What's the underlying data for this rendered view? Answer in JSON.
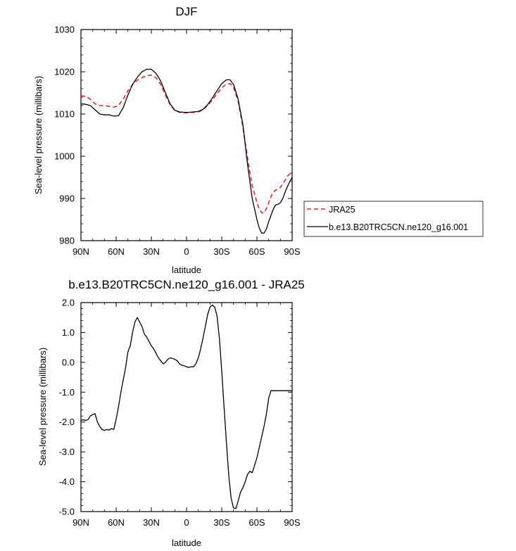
{
  "chart_data": [
    {
      "type": "line",
      "title": "DJF",
      "xlabel": "latitude",
      "ylabel": "Sea-level pressure (millibars)",
      "xlim": [
        90,
        -90
      ],
      "ylim": [
        980,
        1030
      ],
      "xticks": [
        {
          "value": 90,
          "label": "90N"
        },
        {
          "value": 60,
          "label": "60N"
        },
        {
          "value": 30,
          "label": "30N"
        },
        {
          "value": 0,
          "label": "0"
        },
        {
          "value": -30,
          "label": "30S"
        },
        {
          "value": -60,
          "label": "60S"
        },
        {
          "value": -90,
          "label": "90S"
        }
      ],
      "yticks": [
        {
          "value": 980,
          "label": "980"
        },
        {
          "value": 990,
          "label": "990"
        },
        {
          "value": 1000,
          "label": "1000"
        },
        {
          "value": 1010,
          "label": "1010"
        },
        {
          "value": 1020,
          "label": "1020"
        },
        {
          "value": 1030,
          "label": "1030"
        }
      ],
      "grid": false,
      "legend": "right",
      "series": [
        {
          "name": "JRA25",
          "color": "#e8202a",
          "dash": true,
          "x": [
            90,
            86,
            82,
            78,
            74,
            70,
            66,
            62,
            58,
            54,
            50,
            46,
            42,
            38,
            34,
            30,
            26,
            22,
            18,
            14,
            10,
            6,
            2,
            -2,
            -6,
            -10,
            -14,
            -18,
            -22,
            -26,
            -30,
            -34,
            -37,
            -40,
            -44,
            -48,
            -52,
            -56,
            -60,
            -62,
            -64,
            -66,
            -68,
            -70,
            -72,
            -74,
            -76,
            -78,
            -80,
            -82,
            -84,
            -86,
            -88,
            -90
          ],
          "y": [
            1014.3,
            1014.2,
            1013.5,
            1012.4,
            1012.0,
            1012.0,
            1011.8,
            1011.6,
            1012.0,
            1013.5,
            1015.5,
            1017.0,
            1018.0,
            1018.6,
            1019.1,
            1019.2,
            1018.6,
            1017.0,
            1014.5,
            1012.2,
            1010.8,
            1010.4,
            1010.3,
            1010.3,
            1010.4,
            1010.5,
            1011.0,
            1012.0,
            1013.3,
            1014.8,
            1016.2,
            1017.1,
            1017.2,
            1016.4,
            1013.0,
            1007.0,
            999.5,
            993.0,
            989.0,
            987.5,
            986.6,
            986.6,
            987.5,
            989.0,
            990.5,
            991.5,
            992.0,
            992.2,
            992.6,
            993.5,
            994.3,
            995.3,
            995.8,
            996.2
          ]
        },
        {
          "name": "b.e13.B20TRC5CN.ne120_g16.001",
          "color": "#000000",
          "dash": false,
          "x": [
            90,
            86,
            82,
            78,
            74,
            70,
            66,
            62,
            58,
            54,
            50,
            46,
            42,
            38,
            34,
            30,
            26,
            22,
            18,
            14,
            10,
            6,
            2,
            -2,
            -6,
            -10,
            -14,
            -18,
            -22,
            -26,
            -30,
            -34,
            -37,
            -40,
            -44,
            -48,
            -52,
            -56,
            -60,
            -62,
            -64,
            -66,
            -68,
            -70,
            -72,
            -74,
            -76,
            -78,
            -80,
            -82,
            -84,
            -86,
            -88,
            -90
          ],
          "y": [
            1012.4,
            1012.3,
            1012.0,
            1011.0,
            1010.0,
            1009.8,
            1009.8,
            1009.5,
            1009.6,
            1011.5,
            1014.5,
            1017.0,
            1018.7,
            1020.0,
            1020.6,
            1020.6,
            1019.6,
            1017.8,
            1015.0,
            1012.4,
            1010.9,
            1010.5,
            1010.4,
            1010.4,
            1010.5,
            1010.6,
            1011.1,
            1012.2,
            1013.8,
            1015.5,
            1017.2,
            1018.1,
            1018.1,
            1017.0,
            1013.5,
            1007.5,
            998.0,
            990.0,
            985.0,
            983.0,
            981.8,
            981.8,
            982.7,
            984.5,
            986.0,
            987.5,
            988.5,
            988.6,
            989.0,
            990.0,
            991.5,
            992.8,
            994.0,
            995.0
          ]
        }
      ]
    },
    {
      "type": "line",
      "title": "b.e13.B20TRC5CN.ne120_g16.001 - JRA25",
      "xlabel": "latitude",
      "ylabel": "Sea-level pressure (millibars)",
      "xlim": [
        90,
        -90
      ],
      "ylim": [
        -5.0,
        2.0
      ],
      "xticks": [
        {
          "value": 90,
          "label": "90N"
        },
        {
          "value": 60,
          "label": "60N"
        },
        {
          "value": 30,
          "label": "30N"
        },
        {
          "value": 0,
          "label": "0"
        },
        {
          "value": -30,
          "label": "30S"
        },
        {
          "value": -60,
          "label": "60S"
        },
        {
          "value": -90,
          "label": "90S"
        }
      ],
      "yticks": [
        {
          "value": 2.0,
          "label": "2.0"
        },
        {
          "value": 1.0,
          "label": "1.0"
        },
        {
          "value": 0.0,
          "label": "0.0"
        },
        {
          "value": -1.0,
          "label": "-1.0"
        },
        {
          "value": -2.0,
          "label": "-2.0"
        },
        {
          "value": -3.0,
          "label": "-3.0"
        },
        {
          "value": -4.0,
          "label": "-4.0"
        },
        {
          "value": -5.0,
          "label": "-5.0"
        }
      ],
      "grid": false,
      "series": [
        {
          "color": "#000000",
          "dash": false,
          "x": [
            90,
            88,
            86,
            84,
            82,
            80,
            78,
            76,
            74,
            72,
            70,
            68,
            66,
            64,
            62,
            60,
            58,
            56,
            54,
            52,
            50,
            48,
            46,
            44,
            42,
            40,
            38,
            36,
            34,
            32,
            30,
            28,
            26,
            24,
            22,
            20,
            18,
            16,
            14,
            12,
            10,
            8,
            6,
            4,
            2,
            0,
            -2,
            -4,
            -6,
            -8,
            -10,
            -12,
            -14,
            -16,
            -18,
            -20,
            -22,
            -24,
            -26,
            -28,
            -30,
            -32,
            -34,
            -36,
            -38,
            -40,
            -42,
            -44,
            -46,
            -48,
            -50,
            -52,
            -54,
            -56,
            -58,
            -60,
            -62,
            -64,
            -66,
            -68,
            -70,
            -72,
            -74,
            -76,
            -78,
            -80,
            -82,
            -84,
            -86,
            -88,
            -90
          ],
          "y": [
            -1.95,
            -1.92,
            -1.95,
            -1.92,
            -1.8,
            -1.75,
            -1.72,
            -2.0,
            -2.15,
            -2.25,
            -2.28,
            -2.25,
            -2.27,
            -2.22,
            -2.25,
            -1.9,
            -1.5,
            -1.0,
            -0.6,
            -0.2,
            0.35,
            0.55,
            1.0,
            1.35,
            1.5,
            1.35,
            1.2,
            0.95,
            0.85,
            0.7,
            0.55,
            0.45,
            0.3,
            0.15,
            0.05,
            -0.05,
            0.0,
            0.1,
            0.15,
            0.13,
            0.1,
            0.05,
            -0.05,
            -0.1,
            -0.12,
            -0.15,
            -0.17,
            -0.15,
            -0.15,
            -0.05,
            0.15,
            0.45,
            0.8,
            1.2,
            1.6,
            1.85,
            1.92,
            1.85,
            1.55,
            0.8,
            -0.3,
            -1.5,
            -2.7,
            -3.8,
            -4.55,
            -4.88,
            -4.9,
            -4.65,
            -4.35,
            -4.2,
            -4.0,
            -3.75,
            -3.65,
            -3.7,
            -3.45,
            -3.2,
            -2.85,
            -2.5,
            -2.15,
            -1.75,
            -1.2,
            -0.95,
            -0.95,
            -0.95,
            -0.95,
            -0.95,
            -0.95,
            -0.95,
            -0.95,
            -0.95,
            -0.95
          ]
        }
      ]
    }
  ]
}
